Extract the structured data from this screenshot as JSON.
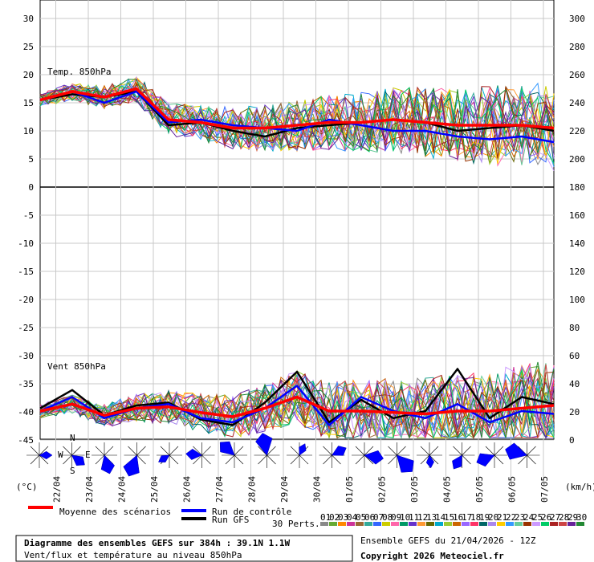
{
  "chart_data": {
    "type": "line",
    "title": "Diagramme des ensembles GEFS sur 384h : 39.1N 1.1W",
    "subtitle": "Vent/flux et température au niveau 850hPa",
    "run_info": "Ensemble GEFS du 21/04/2026 - 12Z",
    "copyright": "Copyright 2026 Meteociel.fr",
    "left_unit": "(°C)",
    "right_unit": "(km/h)",
    "x_dates": [
      "22/04",
      "23/04",
      "24/04",
      "25/04",
      "26/04",
      "27/04",
      "28/04",
      "29/04",
      "30/04",
      "01/05",
      "02/05",
      "03/05",
      "04/05",
      "05/05",
      "06/05",
      "07/05"
    ],
    "y_left_ticks": [
      "30",
      "25",
      "20",
      "15",
      "10",
      "5",
      "0",
      "-5",
      "-10",
      "-15",
      "-20",
      "-25",
      "-30",
      "-35",
      "-40",
      "-45"
    ],
    "y_right_ticks": [
      "300",
      "280",
      "260",
      "240",
      "220",
      "200",
      "180",
      "160",
      "140",
      "120",
      "100",
      "80",
      "60",
      "40",
      "20",
      "0"
    ],
    "panels": [
      {
        "label": "Temp. 850hPa",
        "series": [
          {
            "name": "Moyenne des scénarios",
            "color": "#ff0000",
            "x": [
              0,
              1,
              2,
              3,
              4,
              5,
              6,
              7,
              8,
              9,
              10,
              11,
              12,
              13,
              14,
              15,
              16
            ],
            "values": [
              15.5,
              17,
              16,
              17.5,
              12,
              11.5,
              10.5,
              10.5,
              11,
              11.5,
              11.5,
              12,
              11.5,
              11,
              11,
              11,
              10.5
            ]
          },
          {
            "name": "Run de contrôle",
            "color": "#0000ff",
            "x": [
              0,
              1,
              2,
              3,
              4,
              5,
              6,
              7,
              8,
              9,
              10,
              11,
              12,
              13,
              14,
              15,
              16
            ],
            "values": [
              15.5,
              17,
              15,
              17,
              11.5,
              12,
              11,
              10.5,
              10,
              12,
              11,
              10,
              10,
              9,
              8.5,
              9,
              8
            ]
          },
          {
            "name": "Run GFS",
            "color": "#000000",
            "x": [
              0,
              1,
              2,
              3,
              4,
              5,
              6,
              7,
              8,
              9,
              10,
              11,
              12,
              13,
              14,
              15,
              16
            ],
            "values": [
              15.5,
              16.5,
              16,
              17,
              11,
              11.5,
              10,
              9,
              10.5,
              11,
              11.5,
              12,
              11.5,
              10,
              10.5,
              11,
              10
            ]
          }
        ]
      },
      {
        "label": "Vent 850hPa",
        "series": [
          {
            "name": "Moyenne des scénarios",
            "color": "#ff0000",
            "x": [
              0,
              1,
              2,
              3,
              4,
              5,
              6,
              7,
              8,
              9,
              10,
              11,
              12,
              13,
              14,
              15,
              16
            ],
            "values": [
              20,
              25,
              17,
              22,
              23,
              19,
              16,
              22,
              30,
              20,
              20,
              19,
              18,
              20,
              20,
              22,
              24
            ]
          },
          {
            "name": "Run de contrôle",
            "color": "#0000ff",
            "x": [
              0,
              1,
              2,
              3,
              4,
              5,
              6,
              7,
              8,
              9,
              10,
              11,
              12,
              13,
              14,
              15,
              16
            ],
            "values": [
              20,
              30,
              15,
              22,
              25,
              15,
              12,
              22,
              38,
              10,
              30,
              20,
              15,
              25,
              12,
              20,
              18
            ]
          },
          {
            "name": "Run GFS",
            "color": "#000000",
            "x": [
              0,
              1,
              2,
              3,
              4,
              5,
              6,
              7,
              8,
              9,
              10,
              11,
              12,
              13,
              14,
              15,
              16
            ],
            "values": [
              22,
              35,
              17,
              24,
              26,
              14,
              10,
              26,
              48,
              12,
              28,
              15,
              20,
              50,
              15,
              30,
              25
            ]
          }
        ]
      }
    ],
    "compass": {
      "n": "N",
      "w": "W",
      "e": "E",
      "s": "S"
    },
    "legend": {
      "mean": "Moyenne des scénarios",
      "control": "Run de contrôle",
      "gfs": "Run GFS",
      "perts_label": "30 Perts.",
      "perts": [
        "01",
        "02",
        "03",
        "04",
        "05",
        "06",
        "07",
        "08",
        "09",
        "10",
        "11",
        "12",
        "13",
        "14",
        "15",
        "16",
        "17",
        "18",
        "19",
        "20",
        "21",
        "22",
        "23",
        "24",
        "25",
        "26",
        "27",
        "28",
        "29",
        "30"
      ],
      "pert_colors": [
        "#888888",
        "#66aa33",
        "#ff8800",
        "#cc3399",
        "#996633",
        "#33aa99",
        "#3366ff",
        "#cccc00",
        "#ff66aa",
        "#009966",
        "#6633cc",
        "#ff9933",
        "#666600",
        "#00aacc",
        "#99cc33",
        "#cc6600",
        "#9966ff",
        "#ff3366",
        "#006666",
        "#aa88ee",
        "#ffcc00",
        "#3399ff",
        "#66cc99",
        "#993300",
        "#cc99ff",
        "#00cc66",
        "#aa2222",
        "#cc4444",
        "#662299",
        "#228833"
      ]
    }
  }
}
